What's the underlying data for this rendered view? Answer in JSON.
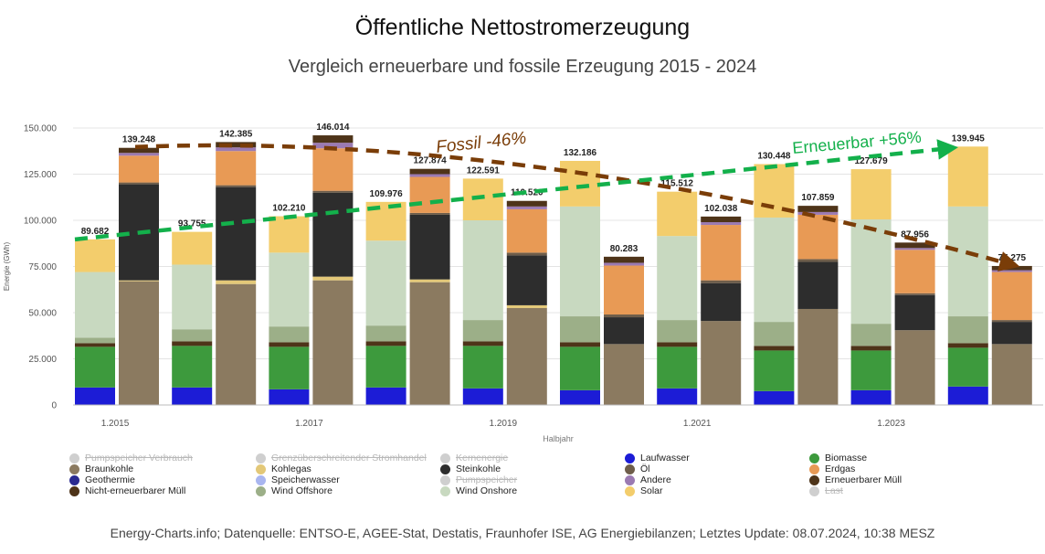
{
  "header": {
    "title": "Öffentliche Nettostromerzeugung",
    "subtitle": "Vergleich erneuerbare und fossile Erzeugung 2015 - 2024"
  },
  "footer": {
    "source": "Energy-Charts.info; Datenquelle: ENTSO-E, AGEE-Stat, Destatis, Fraunhofer ISE, AG Energiebilanzen; Letztes Update: 08.07.2024, 10:38 MESZ"
  },
  "chart_data": {
    "type": "bar",
    "stacked": true,
    "ylabel": "Energie (GWh)",
    "xlabel": "Halbjahr",
    "ylim": [
      0,
      150000
    ],
    "yticks": [
      0,
      25000,
      50000,
      75000,
      100000,
      125000,
      150000
    ],
    "ytick_labels": [
      "0",
      "25.000",
      "50.000",
      "75.000",
      "100.000",
      "125.000",
      "150.000"
    ],
    "grid": true,
    "x_tick_labels": [
      {
        "label": "1.2015",
        "group": 0
      },
      {
        "label": "1.2017",
        "group": 2
      },
      {
        "label": "1.2019",
        "group": 4
      },
      {
        "label": "1.2021",
        "group": 6
      },
      {
        "label": "1.2023",
        "group": 8
      }
    ],
    "groups": 10,
    "colors": {
      "Laufwasser": "#1c1cd6",
      "Biomasse": "#3d9a3d",
      "Braunkohle": "#8b7a60",
      "Kohlegas": "#e3c878",
      "Steinkohle": "#2d2d2d",
      "Öl": "#6e5d4a",
      "Erdgas": "#e89a55",
      "Andere": "#9b7ab2",
      "Erneuerbarer Müll": "#4e3419",
      "Nicht-erneuerbarer Müll": "#4e3419",
      "Wind Offshore": "#9caf88",
      "Wind Onshore": "#c8d9c0",
      "Solar": "#f3cd6c"
    },
    "renewable_bars": [
      {
        "group": 0,
        "total": 89682,
        "label": "89.682",
        "segments": [
          {
            "name": "Laufwasser",
            "value": 9500
          },
          {
            "name": "Biomasse",
            "value": 22000
          },
          {
            "name": "Erneuerbarer Müll",
            "value": 2000
          },
          {
            "name": "Wind Offshore",
            "value": 3000
          },
          {
            "name": "Wind Onshore",
            "value": 35500
          },
          {
            "name": "Solar",
            "value": 17682
          }
        ]
      },
      {
        "group": 1,
        "total": 93755,
        "label": "93.755",
        "segments": [
          {
            "name": "Laufwasser",
            "value": 9500
          },
          {
            "name": "Biomasse",
            "value": 22500
          },
          {
            "name": "Erneuerbarer Müll",
            "value": 2500
          },
          {
            "name": "Wind Offshore",
            "value": 6500
          },
          {
            "name": "Wind Onshore",
            "value": 35000
          },
          {
            "name": "Solar",
            "value": 17755
          }
        ]
      },
      {
        "group": 2,
        "total": 102210,
        "label": "102.210",
        "segments": [
          {
            "name": "Laufwasser",
            "value": 8500
          },
          {
            "name": "Biomasse",
            "value": 23000
          },
          {
            "name": "Erneuerbarer Müll",
            "value": 2500
          },
          {
            "name": "Wind Offshore",
            "value": 8500
          },
          {
            "name": "Wind Onshore",
            "value": 40000
          },
          {
            "name": "Solar",
            "value": 19710
          }
        ]
      },
      {
        "group": 3,
        "total": 109976,
        "label": "109.976",
        "segments": [
          {
            "name": "Laufwasser",
            "value": 9500
          },
          {
            "name": "Biomasse",
            "value": 22500
          },
          {
            "name": "Erneuerbarer Müll",
            "value": 2500
          },
          {
            "name": "Wind Offshore",
            "value": 8500
          },
          {
            "name": "Wind Onshore",
            "value": 46000
          },
          {
            "name": "Solar",
            "value": 20976
          }
        ]
      },
      {
        "group": 4,
        "total": 122591,
        "label": "122.591",
        "segments": [
          {
            "name": "Laufwasser",
            "value": 9000
          },
          {
            "name": "Biomasse",
            "value": 23000
          },
          {
            "name": "Erneuerbarer Müll",
            "value": 2500
          },
          {
            "name": "Wind Offshore",
            "value": 11500
          },
          {
            "name": "Wind Onshore",
            "value": 54000
          },
          {
            "name": "Solar",
            "value": 22591
          }
        ]
      },
      {
        "group": 5,
        "total": 132186,
        "label": "132.186",
        "segments": [
          {
            "name": "Laufwasser",
            "value": 8000
          },
          {
            "name": "Biomasse",
            "value": 23500
          },
          {
            "name": "Erneuerbarer Müll",
            "value": 2500
          },
          {
            "name": "Wind Offshore",
            "value": 14000
          },
          {
            "name": "Wind Onshore",
            "value": 59500
          },
          {
            "name": "Solar",
            "value": 24686
          }
        ]
      },
      {
        "group": 6,
        "total": 115512,
        "label": "115.512",
        "segments": [
          {
            "name": "Laufwasser",
            "value": 9000
          },
          {
            "name": "Biomasse",
            "value": 22500
          },
          {
            "name": "Erneuerbarer Müll",
            "value": 2500
          },
          {
            "name": "Wind Offshore",
            "value": 12000
          },
          {
            "name": "Wind Onshore",
            "value": 45500
          },
          {
            "name": "Solar",
            "value": 24012
          }
        ]
      },
      {
        "group": 7,
        "total": 130448,
        "label": "130.448",
        "segments": [
          {
            "name": "Laufwasser",
            "value": 7500
          },
          {
            "name": "Biomasse",
            "value": 22000
          },
          {
            "name": "Erneuerbarer Müll",
            "value": 2500
          },
          {
            "name": "Wind Offshore",
            "value": 13000
          },
          {
            "name": "Wind Onshore",
            "value": 56500
          },
          {
            "name": "Solar",
            "value": 28948
          }
        ]
      },
      {
        "group": 8,
        "total": 127679,
        "label": "127.679",
        "segments": [
          {
            "name": "Laufwasser",
            "value": 8000
          },
          {
            "name": "Biomasse",
            "value": 21500
          },
          {
            "name": "Erneuerbarer Müll",
            "value": 2500
          },
          {
            "name": "Wind Offshore",
            "value": 12000
          },
          {
            "name": "Wind Onshore",
            "value": 56500
          },
          {
            "name": "Solar",
            "value": 27179
          }
        ]
      },
      {
        "group": 9,
        "total": 139945,
        "label": "139.945",
        "segments": [
          {
            "name": "Laufwasser",
            "value": 10000
          },
          {
            "name": "Biomasse",
            "value": 21000
          },
          {
            "name": "Erneuerbarer Müll",
            "value": 2500
          },
          {
            "name": "Wind Offshore",
            "value": 14500
          },
          {
            "name": "Wind Onshore",
            "value": 59500
          },
          {
            "name": "Solar",
            "value": 32445
          }
        ]
      }
    ],
    "fossil_bars": [
      {
        "group": 0,
        "total": 139248,
        "label": "139.248",
        "segments": [
          {
            "name": "Braunkohle",
            "value": 67000
          },
          {
            "name": "Kohlegas",
            "value": 500
          },
          {
            "name": "Steinkohle",
            "value": 52000
          },
          {
            "name": "Öl",
            "value": 1000
          },
          {
            "name": "Erdgas",
            "value": 14500
          },
          {
            "name": "Andere",
            "value": 1500
          },
          {
            "name": "Nicht-erneuerbarer Müll",
            "value": 2748
          }
        ]
      },
      {
        "group": 1,
        "total": 142385,
        "label": "142.385",
        "segments": [
          {
            "name": "Braunkohle",
            "value": 65500
          },
          {
            "name": "Kohlegas",
            "value": 2000
          },
          {
            "name": "Steinkohle",
            "value": 50500
          },
          {
            "name": "Öl",
            "value": 1000
          },
          {
            "name": "Erdgas",
            "value": 18500
          },
          {
            "name": "Andere",
            "value": 2000
          },
          {
            "name": "Nicht-erneuerbarer Müll",
            "value": 2885
          }
        ]
      },
      {
        "group": 2,
        "total": 146014,
        "label": "146.014",
        "segments": [
          {
            "name": "Braunkohle",
            "value": 67500
          },
          {
            "name": "Kohlegas",
            "value": 2000
          },
          {
            "name": "Steinkohle",
            "value": 45500
          },
          {
            "name": "Öl",
            "value": 1000
          },
          {
            "name": "Erdgas",
            "value": 23000
          },
          {
            "name": "Andere",
            "value": 3000
          },
          {
            "name": "Nicht-erneuerbarer Müll",
            "value": 4014
          }
        ]
      },
      {
        "group": 3,
        "total": 127874,
        "label": "127.874",
        "segments": [
          {
            "name": "Braunkohle",
            "value": 66500
          },
          {
            "name": "Kohlegas",
            "value": 1500
          },
          {
            "name": "Steinkohle",
            "value": 35000
          },
          {
            "name": "Öl",
            "value": 1000
          },
          {
            "name": "Erdgas",
            "value": 19500
          },
          {
            "name": "Andere",
            "value": 1500
          },
          {
            "name": "Nicht-erneuerbarer Müll",
            "value": 2874
          }
        ]
      },
      {
        "group": 4,
        "total": 110520,
        "label": "110.520",
        "segments": [
          {
            "name": "Braunkohle",
            "value": 52500
          },
          {
            "name": "Kohlegas",
            "value": 1500
          },
          {
            "name": "Steinkohle",
            "value": 27000
          },
          {
            "name": "Öl",
            "value": 1500
          },
          {
            "name": "Erdgas",
            "value": 23500
          },
          {
            "name": "Andere",
            "value": 1500
          },
          {
            "name": "Nicht-erneuerbarer Müll",
            "value": 3020
          }
        ]
      },
      {
        "group": 5,
        "total": 80283,
        "label": "80.283",
        "segments": [
          {
            "name": "Braunkohle",
            "value": 33000
          },
          {
            "name": "Kohlegas",
            "value": 0
          },
          {
            "name": "Steinkohle",
            "value": 14500
          },
          {
            "name": "Öl",
            "value": 1500
          },
          {
            "name": "Erdgas",
            "value": 26500
          },
          {
            "name": "Andere",
            "value": 1500
          },
          {
            "name": "Nicht-erneuerbarer Müll",
            "value": 3283
          }
        ]
      },
      {
        "group": 6,
        "total": 102038,
        "label": "102.038",
        "segments": [
          {
            "name": "Braunkohle",
            "value": 45500
          },
          {
            "name": "Kohlegas",
            "value": 0
          },
          {
            "name": "Steinkohle",
            "value": 20500
          },
          {
            "name": "Öl",
            "value": 1500
          },
          {
            "name": "Erdgas",
            "value": 30000
          },
          {
            "name": "Andere",
            "value": 1500
          },
          {
            "name": "Nicht-erneuerbarer Müll",
            "value": 3038
          }
        ]
      },
      {
        "group": 7,
        "total": 107859,
        "label": "107.859",
        "segments": [
          {
            "name": "Braunkohle",
            "value": 52000
          },
          {
            "name": "Kohlegas",
            "value": 0
          },
          {
            "name": "Steinkohle",
            "value": 25500
          },
          {
            "name": "Öl",
            "value": 1500
          },
          {
            "name": "Erdgas",
            "value": 24000
          },
          {
            "name": "Andere",
            "value": 1500
          },
          {
            "name": "Nicht-erneuerbarer Müll",
            "value": 3359
          }
        ]
      },
      {
        "group": 8,
        "total": 87956,
        "label": "87.956",
        "segments": [
          {
            "name": "Braunkohle",
            "value": 40500
          },
          {
            "name": "Kohlegas",
            "value": 0
          },
          {
            "name": "Steinkohle",
            "value": 19000
          },
          {
            "name": "Öl",
            "value": 1000
          },
          {
            "name": "Erdgas",
            "value": 23500
          },
          {
            "name": "Andere",
            "value": 1000
          },
          {
            "name": "Nicht-erneuerbarer Müll",
            "value": 2956
          }
        ]
      },
      {
        "group": 9,
        "total": 75275,
        "label": "75.275",
        "segments": [
          {
            "name": "Braunkohle",
            "value": 33000
          },
          {
            "name": "Kohlegas",
            "value": 0
          },
          {
            "name": "Steinkohle",
            "value": 12000
          },
          {
            "name": "Öl",
            "value": 1000
          },
          {
            "name": "Erdgas",
            "value": 26000
          },
          {
            "name": "Andere",
            "value": 1000
          },
          {
            "name": "Nicht-erneuerbarer Müll",
            "value": 2275
          }
        ]
      }
    ],
    "annotations": [
      {
        "text": "Fossil -46%",
        "color": "#7a3d08",
        "from": {
          "group": 0,
          "bar": "fossil",
          "value": 139248
        },
        "to": {
          "group": 9,
          "bar": "fossil",
          "value": 75275
        }
      },
      {
        "text": "Erneuerbar +56%",
        "color": "#13b04b",
        "from": {
          "group": 0,
          "bar": "renewable",
          "value": 89682
        },
        "to": {
          "group": 9,
          "bar": "renewable",
          "value": 139945
        }
      }
    ],
    "legend": {
      "placement": "bottom",
      "items": [
        {
          "label": "Pumpspeicher Verbrauch",
          "color": "#cfcfcf",
          "active": false
        },
        {
          "label": "Grenzüberschreitender Stromhandel",
          "color": "#cfcfcf",
          "active": false
        },
        {
          "label": "Kernenergie",
          "color": "#cfcfcf",
          "active": false
        },
        {
          "label": "Laufwasser",
          "color": "#1c1cd6",
          "active": true
        },
        {
          "label": "Biomasse",
          "color": "#3d9a3d",
          "active": true
        },
        {
          "label": "Braunkohle",
          "color": "#8b7a60",
          "active": true
        },
        {
          "label": "Kohlegas",
          "color": "#e3c878",
          "active": true
        },
        {
          "label": "Steinkohle",
          "color": "#2d2d2d",
          "active": true
        },
        {
          "label": "Öl",
          "color": "#6e5d4a",
          "active": true
        },
        {
          "label": "Erdgas",
          "color": "#e89a55",
          "active": true
        },
        {
          "label": "Geothermie",
          "color": "#2a2a90",
          "active": true
        },
        {
          "label": "Speicherwasser",
          "color": "#a9b6f0",
          "active": true
        },
        {
          "label": "Pumpspeicher",
          "color": "#cfcfcf",
          "active": false
        },
        {
          "label": "Andere",
          "color": "#9b7ab2",
          "active": true
        },
        {
          "label": "Erneuerbarer Müll",
          "color": "#4e3419",
          "active": true
        },
        {
          "label": "Nicht-erneuerbarer Müll",
          "color": "#4e3419",
          "active": true
        },
        {
          "label": "Wind Offshore",
          "color": "#9caf88",
          "active": true
        },
        {
          "label": "Wind Onshore",
          "color": "#c8d9c0",
          "active": true
        },
        {
          "label": "Solar",
          "color": "#f3cd6c",
          "active": true
        },
        {
          "label": "Last",
          "color": "#cfcfcf",
          "active": false
        }
      ]
    }
  }
}
